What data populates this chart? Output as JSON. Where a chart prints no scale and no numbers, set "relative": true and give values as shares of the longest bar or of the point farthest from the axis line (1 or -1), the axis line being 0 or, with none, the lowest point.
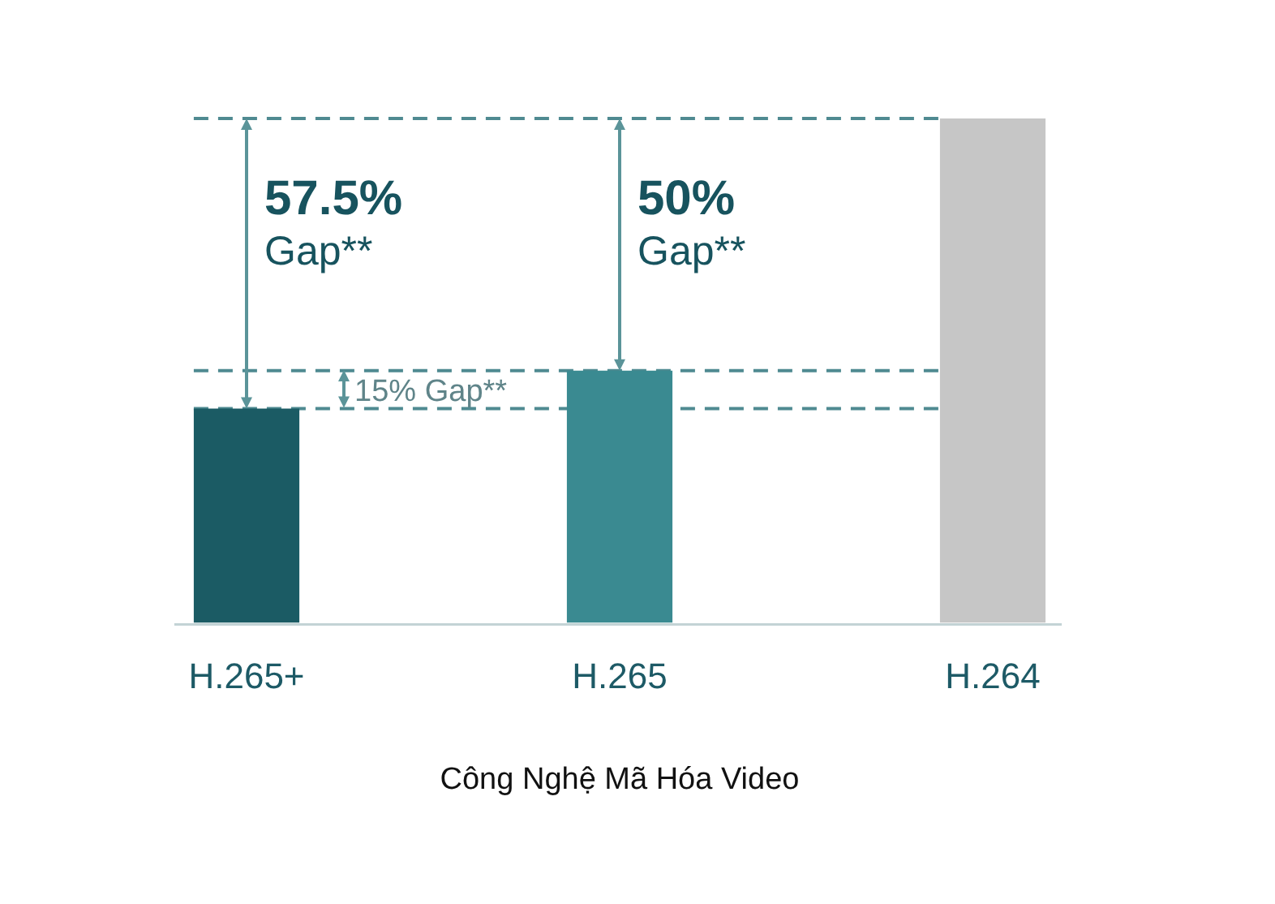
{
  "chart_data": {
    "type": "bar",
    "relative": true,
    "categories": [
      "H.265+",
      "H.265",
      "H.264"
    ],
    "values": [
      0.425,
      0.5,
      1
    ],
    "colors": [
      "#1b5b64",
      "#3a8a91",
      "#c6c6c6"
    ],
    "xlabel": "Công Nghệ Mã Hóa Video",
    "ref_lines": [
      {
        "axis": "y",
        "value": 1,
        "color": "#4f8a91",
        "line_style": "dashed"
      },
      {
        "axis": "y",
        "value": 0.5,
        "color": "#4f8a91",
        "line_style": "dashed"
      },
      {
        "axis": "y",
        "value": 0.425,
        "color": "#4f8a91",
        "line_style": "dashed"
      }
    ],
    "annotations": [
      {
        "text": "57.5%\nGap**",
        "x": "H.265+",
        "y": 1
      },
      {
        "text": "50%\nGap**",
        "x": "H.265",
        "y": 1
      },
      "15% Gap**"
    ]
  }
}
